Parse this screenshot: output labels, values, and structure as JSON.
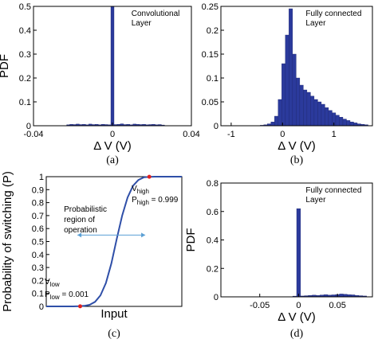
{
  "colors": {
    "bar": "#2b3a9c",
    "bar_edge": "#1c2670",
    "curve": "#2f4fa8",
    "arrow": "#5a9fd4",
    "marker": "#e02020"
  },
  "chart_data": [
    {
      "panel": "(a)",
      "type": "bar",
      "annotation": [
        "Convolutional",
        "Layer"
      ],
      "xlabel": "Δ V (V)",
      "ylabel": "PDF",
      "xlim": [
        -0.04,
        0.04
      ],
      "ylim": [
        0,
        0.5
      ],
      "xticks": [
        "-0.04",
        "0",
        "0.04"
      ],
      "yticks": [
        "0",
        "0.1",
        "0.2",
        "0.3",
        "0.4",
        "0.5"
      ],
      "bin_width": 0.0016,
      "x": [
        -0.0224,
        -0.0208,
        -0.0192,
        -0.0176,
        -0.016,
        -0.0144,
        -0.0128,
        -0.0112,
        -0.0096,
        -0.008,
        -0.0064,
        -0.0048,
        -0.0032,
        -0.0016,
        0,
        0.0016,
        0.0032,
        0.0048,
        0.0064,
        0.008,
        0.0096,
        0.0112,
        0.0128,
        0.0144,
        0.016,
        0.0176,
        0.0192,
        0.0208,
        0.0224,
        0.024,
        0.0256
      ],
      "values": [
        0.004,
        0.006,
        0.005,
        0.007,
        0.005,
        0.006,
        0.004,
        0.007,
        0.005,
        0.006,
        0.004,
        0.006,
        0.005,
        0.004,
        0.5,
        0.005,
        0.006,
        0.008,
        0.005,
        0.006,
        0.004,
        0.007,
        0.006,
        0.005,
        0.006,
        0.004,
        0.005,
        0.006,
        0.004,
        0.005,
        0.003
      ]
    },
    {
      "panel": "(b)",
      "type": "bar",
      "annotation": [
        "Fully connected",
        "Layer"
      ],
      "xlabel": "Δ V (V)",
      "ylabel": "",
      "xlim": [
        -1.2,
        1.75
      ],
      "ylim": [
        0,
        0.25
      ],
      "xticks": [
        "-1",
        "0",
        "1"
      ],
      "yticks": [
        "0",
        "0.05",
        "0.1",
        "0.15",
        "0.2",
        "0.25"
      ],
      "bin_width": 0.07,
      "x": [
        -0.4,
        -0.33,
        -0.26,
        -0.19,
        -0.12,
        -0.05,
        0.02,
        0.09,
        0.16,
        0.23,
        0.3,
        0.37,
        0.44,
        0.51,
        0.58,
        0.65,
        0.72,
        0.79,
        0.86,
        0.93,
        1.0,
        1.07,
        1.14,
        1.21,
        1.28,
        1.35,
        1.42,
        1.49,
        1.56,
        1.63
      ],
      "values": [
        0.001,
        0.002,
        0.004,
        0.008,
        0.02,
        0.055,
        0.13,
        0.19,
        0.245,
        0.15,
        0.1,
        0.085,
        0.075,
        0.07,
        0.062,
        0.055,
        0.05,
        0.045,
        0.038,
        0.032,
        0.027,
        0.022,
        0.018,
        0.014,
        0.011,
        0.008,
        0.006,
        0.004,
        0.003,
        0.002
      ]
    },
    {
      "panel": "(c)",
      "type": "line",
      "xlabel": "Input",
      "ylabel": "Probability of switching (P)",
      "ylim": [
        0,
        1
      ],
      "yticks": [
        "0",
        "0.1",
        "0.2",
        "0.3",
        "0.4",
        "0.5",
        "0.6",
        "0.7",
        "0.8",
        "0.9",
        "1"
      ],
      "region_label": [
        "Probabilistic",
        "region of",
        "operation"
      ],
      "high_label": "V",
      "high_sub": "high",
      "high_p": "P",
      "high_p_sub": "high",
      "high_p_val": " = 0.999",
      "low_label": "V",
      "low_sub": "low",
      "low_p": "P",
      "low_p_sub": "low",
      "low_p_val": " = 0.001",
      "x": [
        0,
        0.04,
        0.08,
        0.12,
        0.16,
        0.2,
        0.24,
        0.28,
        0.32,
        0.36,
        0.4,
        0.44,
        0.48,
        0.52,
        0.56,
        0.6,
        0.64,
        0.68,
        0.72,
        0.76,
        0.8,
        0.84,
        0.88,
        0.92,
        0.96,
        1.0
      ],
      "values": [
        0,
        0,
        0,
        0,
        0,
        0,
        0.001,
        0.004,
        0.012,
        0.035,
        0.085,
        0.18,
        0.33,
        0.52,
        0.7,
        0.84,
        0.93,
        0.975,
        0.995,
        0.999,
        1,
        1,
        1,
        1,
        1,
        1
      ],
      "markers": [
        {
          "x": 0.25,
          "y": 0.001
        },
        {
          "x": 0.76,
          "y": 0.999
        }
      ]
    },
    {
      "panel": "(d)",
      "type": "bar",
      "annotation": [
        "Fully connected",
        "Layer"
      ],
      "xlabel": "Δ V (V)",
      "ylabel": "PDF",
      "xlim": [
        -0.1,
        0.095
      ],
      "ylim": [
        0,
        0.8
      ],
      "xticks": [
        "-0.05",
        "0",
        "0.05"
      ],
      "yticks": [
        "0",
        "0.2",
        "0.4",
        "0.6",
        "0.8"
      ],
      "bin_width": 0.005,
      "x": [
        -0.005,
        0,
        0.005,
        0.01,
        0.015,
        0.02,
        0.025,
        0.03,
        0.035,
        0.04,
        0.045,
        0.05,
        0.055,
        0.06,
        0.065,
        0.07,
        0.075,
        0.08,
        0.085
      ],
      "values": [
        0.005,
        0.62,
        0.006,
        0.008,
        0.01,
        0.012,
        0.01,
        0.013,
        0.015,
        0.012,
        0.014,
        0.016,
        0.02,
        0.018,
        0.015,
        0.014,
        0.01,
        0.008,
        0.006
      ]
    }
  ]
}
